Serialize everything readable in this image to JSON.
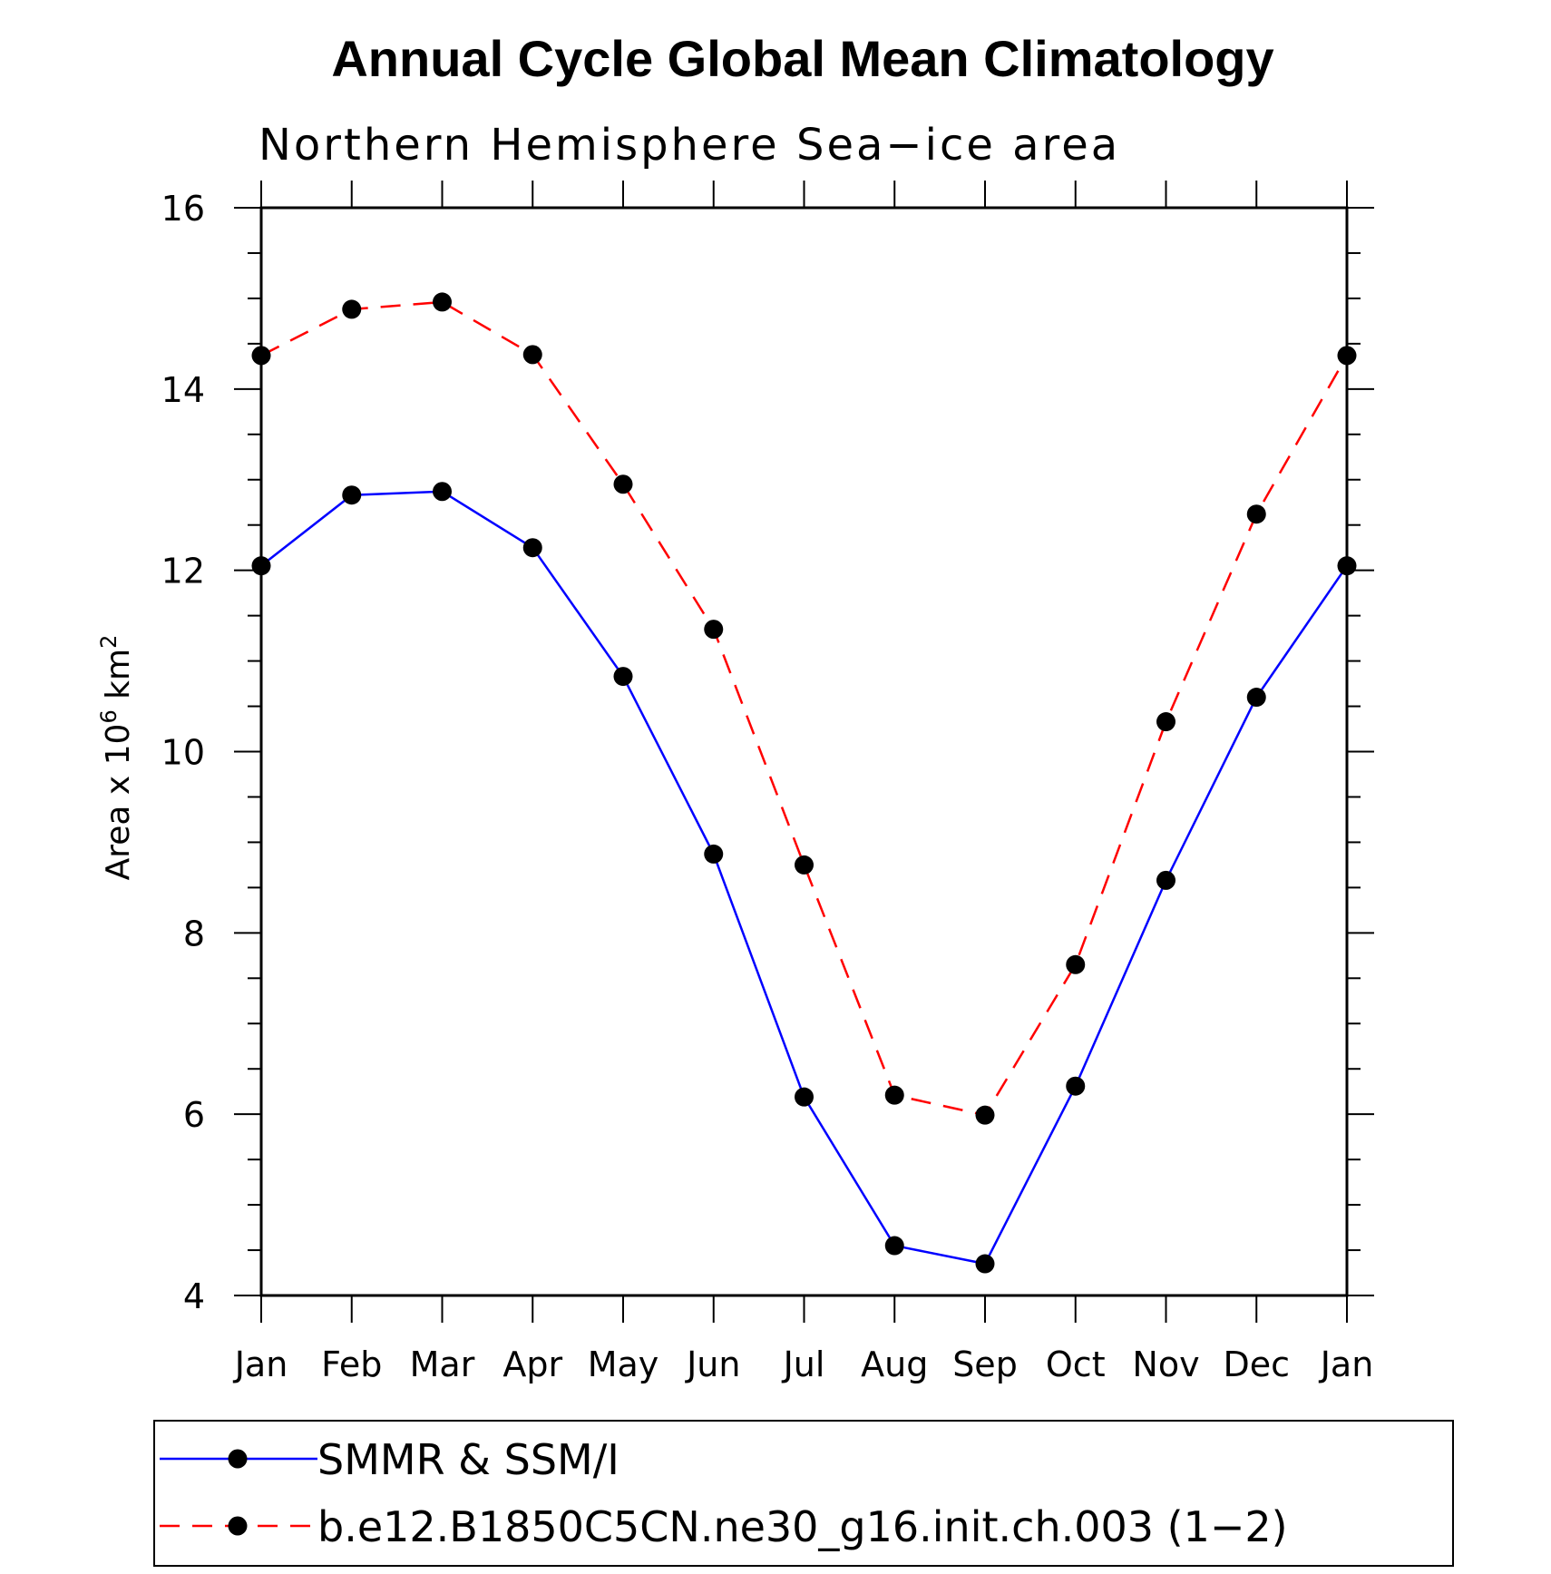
{
  "chart_data": {
    "type": "line",
    "title": "Annual Cycle Global Mean Climatology",
    "subtitle": "Northern Hemisphere Sea−ice area",
    "ylabel_prefix": "Area x 10",
    "ylabel_exponent": "6",
    "ylabel_unit": "km",
    "ylabel_unit_exponent": "2",
    "categories": [
      "Jan",
      "Feb",
      "Mar",
      "Apr",
      "May",
      "Jun",
      "Jul",
      "Aug",
      "Sep",
      "Oct",
      "Nov",
      "Dec",
      "Jan"
    ],
    "ylim": [
      4,
      16
    ],
    "yticks": [
      4,
      6,
      8,
      10,
      12,
      14,
      16
    ],
    "yticks_minor_step": 0.5,
    "grid": false,
    "legend_position": "bottom",
    "series": [
      {
        "name": "SMMR & SSM/I",
        "color": "#0000ff",
        "dash": "solid",
        "values": [
          12.05,
          12.83,
          12.87,
          12.25,
          10.83,
          8.87,
          6.19,
          4.55,
          4.35,
          6.31,
          8.58,
          10.6,
          12.05
        ]
      },
      {
        "name": "b.e12.B1850C5CN.ne30_g16.init.ch.003 (1−2)",
        "color": "#ff0000",
        "dash": "dashed",
        "values": [
          14.37,
          14.88,
          14.96,
          14.38,
          12.95,
          11.35,
          8.75,
          6.21,
          5.99,
          7.65,
          10.33,
          12.62,
          14.37
        ]
      }
    ],
    "marker_color": "#000000"
  }
}
